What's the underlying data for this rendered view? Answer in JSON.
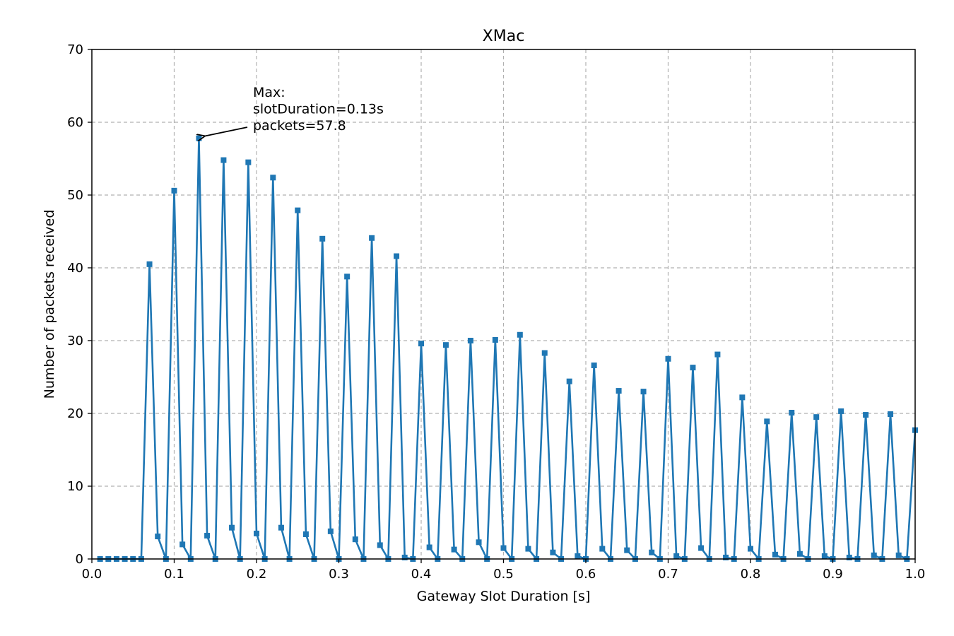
{
  "chart_data": {
    "type": "line",
    "title": "XMac",
    "xlabel": "Gateway Slot Duration [s]",
    "ylabel": "Number of packets received",
    "xlim": [
      0.0,
      1.0
    ],
    "ylim": [
      0,
      70
    ],
    "xticks": [
      "0.0",
      "0.1",
      "0.2",
      "0.3",
      "0.4",
      "0.5",
      "0.6",
      "0.7",
      "0.8",
      "0.9",
      "1.0"
    ],
    "yticks": [
      "0",
      "10",
      "20",
      "30",
      "40",
      "50",
      "60",
      "70"
    ],
    "grid": true,
    "series_color": "#1f77b4",
    "marker": "square",
    "x": [
      0.01,
      0.02,
      0.03,
      0.04,
      0.05,
      0.06,
      0.07,
      0.08,
      0.09,
      0.1,
      0.11,
      0.12,
      0.13,
      0.14,
      0.15,
      0.16,
      0.17,
      0.18,
      0.19,
      0.2,
      0.21,
      0.22,
      0.23,
      0.24,
      0.25,
      0.26,
      0.27,
      0.28,
      0.29,
      0.3,
      0.31,
      0.32,
      0.33,
      0.34,
      0.35,
      0.36,
      0.37,
      0.38,
      0.39,
      0.4,
      0.41,
      0.42,
      0.43,
      0.44,
      0.45,
      0.46,
      0.47,
      0.48,
      0.49,
      0.5,
      0.51,
      0.52,
      0.53,
      0.54,
      0.55,
      0.56,
      0.57,
      0.58,
      0.59,
      0.6,
      0.61,
      0.62,
      0.63,
      0.64,
      0.65,
      0.66,
      0.67,
      0.68,
      0.69,
      0.7,
      0.71,
      0.72,
      0.73,
      0.74,
      0.75,
      0.76,
      0.77,
      0.78,
      0.79,
      0.8,
      0.81,
      0.82,
      0.83,
      0.84,
      0.85,
      0.86,
      0.87,
      0.88,
      0.89,
      0.9,
      0.91,
      0.92,
      0.93,
      0.94,
      0.95,
      0.96,
      0.97,
      0.98,
      0.99,
      1.0
    ],
    "y": [
      0,
      0,
      0,
      0,
      0,
      0,
      40.5,
      3.1,
      0,
      50.6,
      2.0,
      0,
      57.8,
      3.2,
      0,
      54.8,
      4.3,
      0,
      54.5,
      3.5,
      0,
      52.4,
      4.3,
      0,
      47.9,
      3.4,
      0,
      44.0,
      3.8,
      0,
      38.8,
      2.7,
      0,
      44.1,
      1.9,
      0,
      41.6,
      0.2,
      0,
      29.6,
      1.6,
      0,
      29.4,
      1.3,
      0,
      30.0,
      2.3,
      0,
      30.1,
      1.5,
      0,
      30.8,
      1.4,
      0,
      28.3,
      0.9,
      0,
      24.4,
      0.4,
      0,
      26.6,
      1.4,
      0,
      23.1,
      1.2,
      0,
      23.0,
      0.9,
      0,
      27.5,
      0.4,
      0,
      26.3,
      1.5,
      0,
      28.1,
      0.2,
      0,
      22.2,
      1.4,
      0,
      18.9,
      0.6,
      0,
      20.1,
      0.7,
      0,
      19.5,
      0.4,
      0,
      20.3,
      0.2,
      0,
      19.8,
      0.5,
      0,
      19.9,
      0.5,
      0,
      17.7
    ],
    "annotation": {
      "lines": [
        "Max:",
        "slotDuration=0.13s",
        "packets=57.8"
      ],
      "target_x": 0.13,
      "target_y": 57.8
    }
  }
}
